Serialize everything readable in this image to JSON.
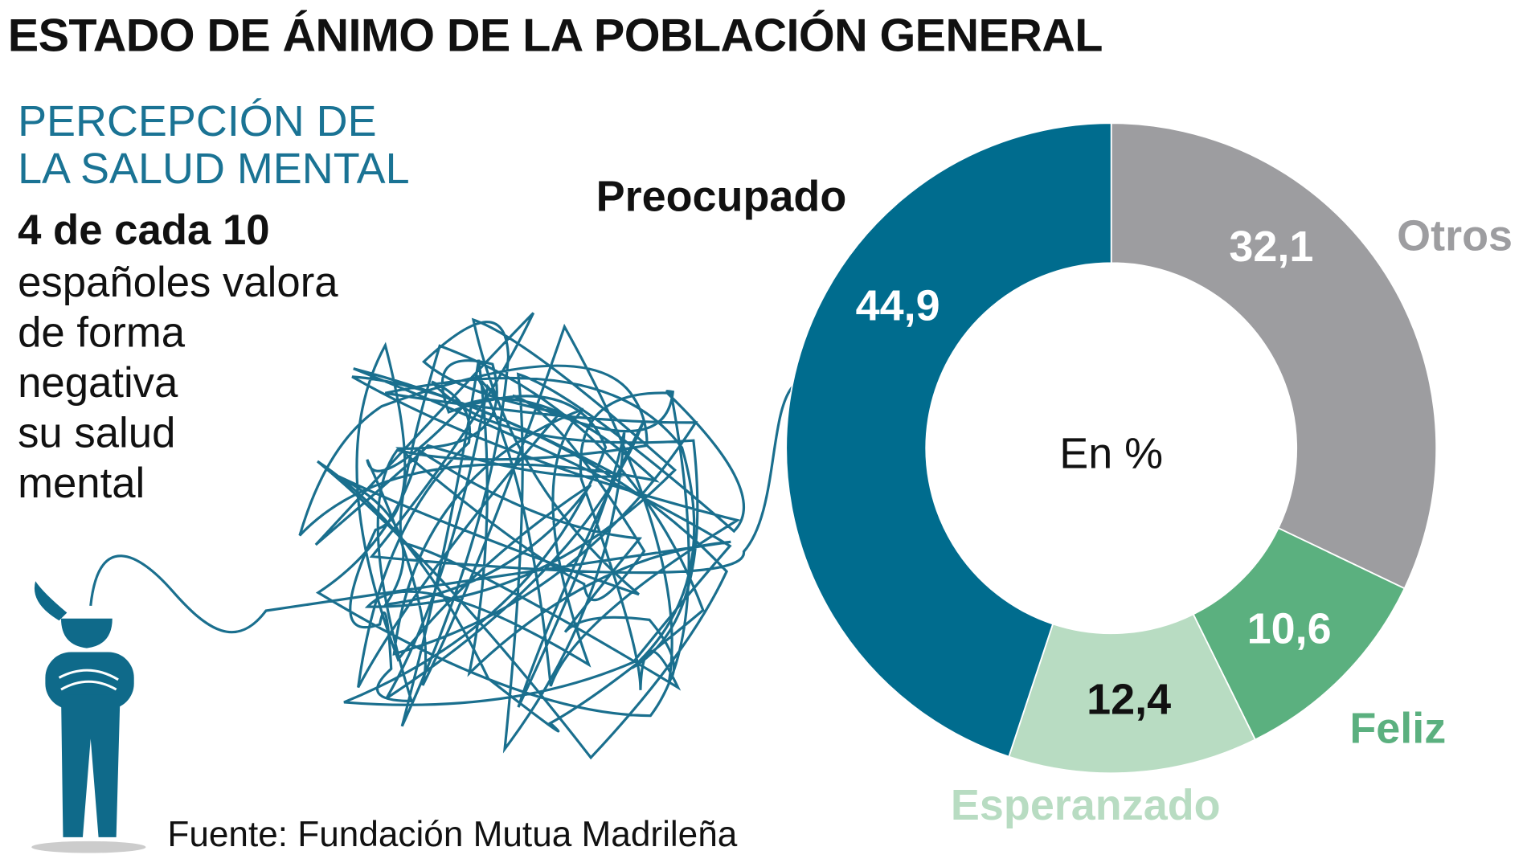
{
  "title": "ESTADO DE ÁNIMO DE LA POBLACIÓN GENERAL",
  "subtitle_lines": [
    "PERCEPCIÓN DE",
    "LA SALUD MENTAL"
  ],
  "lead": "4 de cada 10",
  "body_lines": [
    "españoles valora",
    "de forma",
    "negativa",
    "su salud",
    "mental"
  ],
  "source": "Fuente: Fundación Mutua Madrileña",
  "chart_data": {
    "type": "pie",
    "donut": true,
    "center_label": "En %",
    "start": "top",
    "direction": "clockwise",
    "slices": [
      {
        "label": "Otros",
        "value": 32.1,
        "value_label": "32,1",
        "color": "#9d9da0",
        "value_color": "#ffffff"
      },
      {
        "label": "Feliz",
        "value": 10.6,
        "value_label": "10,6",
        "color": "#5bb07f",
        "value_color": "#ffffff"
      },
      {
        "label": "Esperanzado",
        "value": 12.4,
        "value_label": "12,4",
        "color": "#b8dcc2",
        "value_color": "#111111"
      },
      {
        "label": "Preocupado",
        "value": 44.9,
        "value_label": "44,9",
        "color": "#006c8e",
        "value_color": "#ffffff"
      }
    ]
  },
  "colors": {
    "accent": "#1a7394",
    "illustration": "#1a6f8e",
    "figure": "#0f6a8a"
  }
}
